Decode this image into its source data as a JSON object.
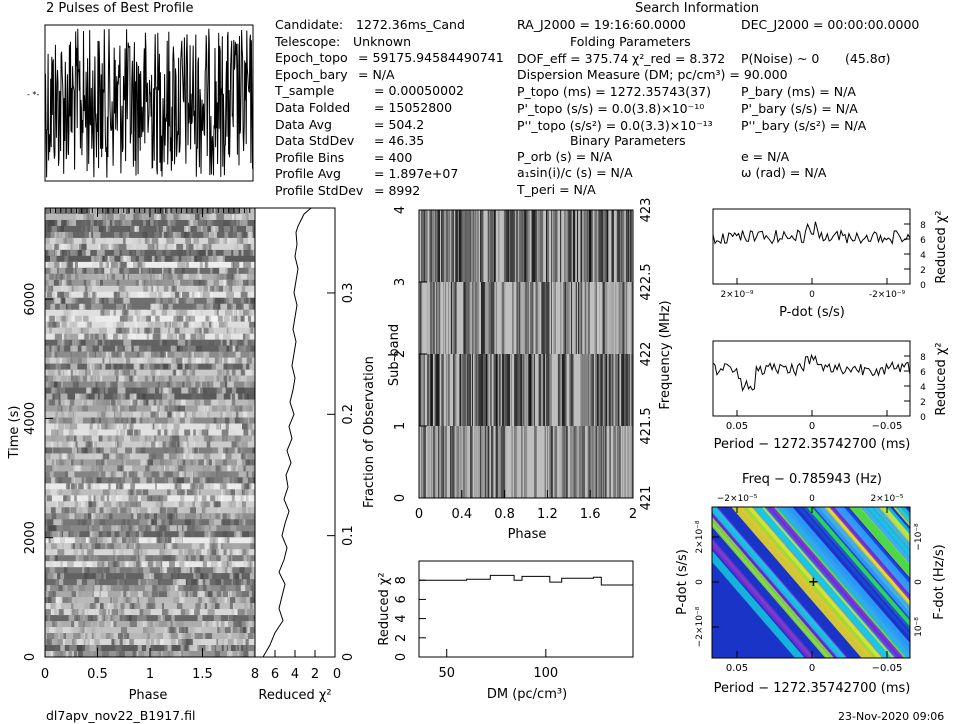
{
  "header": {
    "pulses_title": "2 Pulses of Best Profile",
    "search_title": "Search Information",
    "filename": "dl7apv_nov22_B1917.fil",
    "date": "23-Nov-2020 09:06"
  },
  "candidate_info": [
    {
      "label": "Candidate:",
      "value": "1272.36ms_Cand"
    },
    {
      "label": "Telescope:",
      "value": "Unknown"
    },
    {
      "label": "Epoch_topo",
      "value": "= 59175.94584490741"
    },
    {
      "label": "Epoch_bary",
      "value": "= N/A"
    },
    {
      "label": "T_sample",
      "value": "= 0.00050002"
    },
    {
      "label": "Data Folded",
      "value": "= 15052800"
    },
    {
      "label": "Data Avg",
      "value": "= 504.2"
    },
    {
      "label": "Data StdDev",
      "value": "= 46.35"
    },
    {
      "label": "Profile Bins",
      "value": "= 400"
    },
    {
      "label": "Profile Avg",
      "value": "= 1.897e+07"
    },
    {
      "label": "Profile StdDev",
      "value": "= 8992"
    }
  ],
  "search_info": {
    "ra": "RA_J2000 = 19:16:60.0000",
    "dec": "DEC_J2000 = 00:00:00.0000",
    "folding_title": "Folding Parameters",
    "dof": "DOF_eff = 375.74",
    "chi_red": "χ²_red = 8.372",
    "pnoise": "P(Noise) ~ 0",
    "sigma": "(45.8σ)",
    "dm": "Dispersion Measure (DM; pc/cm³) = 90.000",
    "p_topo": "P_topo (ms) = 1272.35743(37)",
    "p_bary": "P_bary (ms) = N/A",
    "pd_topo": "P'_topo (s/s) = 0.0(3.8)×10⁻¹⁰",
    "pd_bary": "P'_bary (s/s) = N/A",
    "pdd_topo": "P''_topo (s/s²) = 0.0(3.3)×10⁻¹³",
    "pdd_bary": "P''_bary (s/s²) = N/A",
    "binary_title": "Binary Parameters",
    "p_orb": "P_orb (s) = N/A",
    "e": "e = N/A",
    "a1sini": "a₁sin(i)/c (s) = N/A",
    "omega": "ω (rad) = N/A",
    "t_peri": "T_peri = N/A"
  },
  "chart_data": [
    {
      "id": "pulse_profile",
      "type": "line",
      "title": "2 Pulses of Best Profile",
      "x": [
        0,
        2
      ],
      "description_only": false,
      "peak_phases": []
    },
    {
      "id": "time_phase",
      "type": "heatmap",
      "xlabel": "Phase",
      "ylabel": "Time (s)",
      "xlim": [
        0,
        2
      ],
      "ylim": [
        0,
        7527
      ],
      "xticks": [
        "0",
        "0.5",
        "1",
        "1.5"
      ],
      "yticks": [
        "0",
        "2000",
        "4000",
        "6000"
      ]
    },
    {
      "id": "time_chi2",
      "type": "line",
      "xlabel": "Reduced χ²",
      "ylabel": "Fraction of Observation",
      "xlim": [
        8,
        0
      ],
      "ylim": [
        0,
        0.37
      ],
      "xticks": [
        "8",
        "6",
        "4",
        "2",
        "0"
      ],
      "yticks": [
        "0",
        "0.1",
        "0.2",
        "0.3"
      ],
      "x": [
        7.2,
        6.5,
        6.0,
        5.2,
        5.6,
        5.3,
        5.0,
        5.6,
        5.1,
        4.8,
        5.3,
        5.0,
        4.6,
        5.1,
        4.7,
        4.9,
        4.4,
        4.8,
        4.3,
        4.6,
        4.1,
        4.5,
        4.2,
        4.0,
        4.3,
        4.1,
        3.9,
        4.2,
        4.0,
        3.8,
        4.1,
        3.9,
        3.7,
        4.0,
        3.8,
        3.9,
        3.7,
        3.4,
        3.1,
        2.4,
        1.2
      ],
      "y": [
        0.0,
        0.01,
        0.02,
        0.03,
        0.04,
        0.05,
        0.06,
        0.07,
        0.08,
        0.09,
        0.1,
        0.11,
        0.12,
        0.13,
        0.14,
        0.15,
        0.16,
        0.17,
        0.18,
        0.19,
        0.2,
        0.21,
        0.22,
        0.23,
        0.24,
        0.25,
        0.26,
        0.27,
        0.28,
        0.29,
        0.3,
        0.31,
        0.32,
        0.33,
        0.34,
        0.35,
        0.355,
        0.36,
        0.365,
        0.37,
        0.37
      ]
    },
    {
      "id": "subband_phase",
      "type": "heatmap",
      "xlabel": "Phase",
      "ylabel": "Sub-band",
      "y2label": "Frequency (MHz)",
      "xlim": [
        0,
        2
      ],
      "ylim": [
        0,
        4
      ],
      "xticks": [
        "0",
        "0.4",
        "0.8",
        "1.2",
        "1.6",
        "2"
      ],
      "yticks": [
        "0",
        "1",
        "2",
        "3",
        "4"
      ],
      "y2ticks": [
        "421",
        "421.5",
        "422",
        "422.5",
        "423"
      ]
    },
    {
      "id": "dm_chi2",
      "type": "line",
      "xlabel": "DM (pc/cm³)",
      "ylabel": "Reduced χ²",
      "xlim": [
        36,
        144
      ],
      "ylim": [
        0,
        10
      ],
      "xticks": [
        "50",
        "100"
      ],
      "yticks": [
        "0",
        "2",
        "4",
        "6",
        "8"
      ],
      "x": [
        36,
        48,
        60,
        68,
        72,
        84,
        88,
        96,
        102,
        108,
        124,
        128,
        144
      ],
      "y": [
        8.0,
        8.0,
        8.1,
        8.1,
        8.5,
        8.0,
        8.4,
        8.4,
        7.8,
        8.2,
        8.3,
        7.5,
        7.5
      ]
    },
    {
      "id": "pdot_chi2",
      "type": "line",
      "xlabel": "P-dot (s/s)",
      "ylabel": "Reduced χ²",
      "xticks": [
        "2×10⁻⁹",
        "0",
        "-2×10⁻⁹"
      ],
      "yticks": [
        "0",
        "2",
        "4",
        "6",
        "8"
      ],
      "ylim": [
        0,
        10
      ]
    },
    {
      "id": "period_chi2",
      "type": "line",
      "xlabel": "Period − 1272.35742700 (ms)",
      "ylabel": "Reduced χ²",
      "xticks": [
        "0.05",
        "0",
        "−0.05"
      ],
      "yticks": [
        "0",
        "2",
        "4",
        "6",
        "8"
      ],
      "ylim": [
        0,
        10
      ]
    },
    {
      "id": "p_pdot_plane",
      "type": "heatmap",
      "title": "Freq − 0.785943 (Hz)",
      "xlabel": "Period − 1272.35742700 (ms)",
      "ylabel": "P-dot (s/s)",
      "y2label": "F-dot (Hz/s)",
      "xticks": [
        "0.05",
        "0",
        "−0.05"
      ],
      "x2ticks": [
        "−2×10⁻⁵",
        "0",
        "2×10⁻⁵"
      ],
      "yticks": [
        "2×10⁻⁸",
        "0",
        "−2×10⁻⁸"
      ],
      "y2ticks": [
        "−10⁻⁸",
        "0",
        "10⁻⁸"
      ]
    }
  ]
}
